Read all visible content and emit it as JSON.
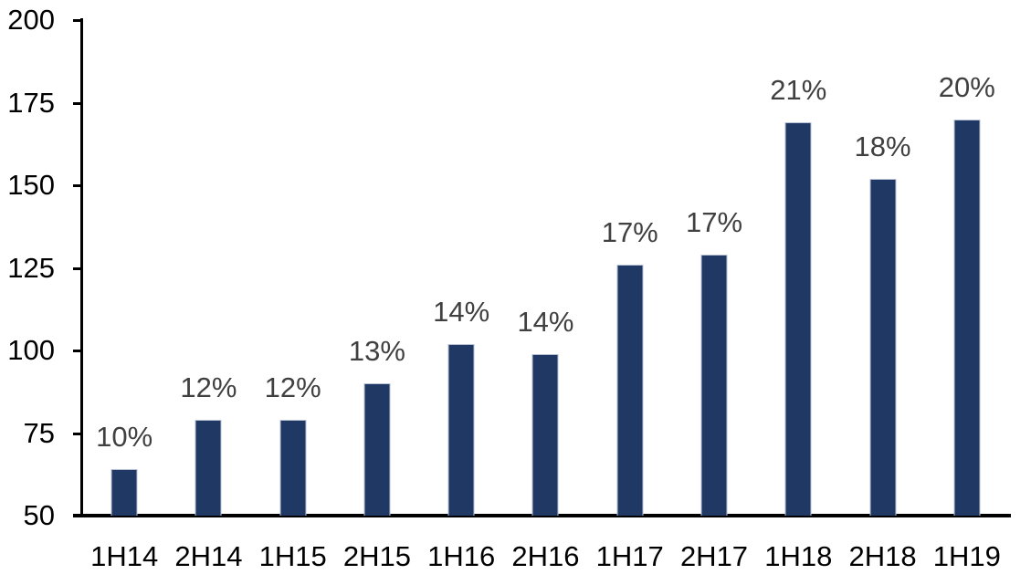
{
  "chart_data": {
    "type": "bar",
    "categories": [
      "1H14",
      "2H14",
      "1H15",
      "2H15",
      "1H16",
      "2H16",
      "1H17",
      "2H17",
      "1H18",
      "2H18",
      "1H19"
    ],
    "values": [
      64,
      79,
      79,
      90,
      102,
      99,
      126,
      129,
      169,
      152,
      170
    ],
    "bar_labels": [
      "10%",
      "12%",
      "12%",
      "13%",
      "14%",
      "14%",
      "17%",
      "17%",
      "21%",
      "18%",
      "20%"
    ],
    "title": "",
    "xlabel": "",
    "ylabel": "",
    "ylim": [
      50,
      200
    ],
    "yticks": [
      50,
      75,
      100,
      125,
      150,
      175,
      200
    ],
    "grid": false,
    "legend_position": "none",
    "colors": {
      "bar_fill": "#1f3864",
      "bar_border": "#b8c2d4",
      "data_label": "#404040",
      "axis_line": "#000000",
      "tick_label": "#000000",
      "background": "#ffffff"
    }
  }
}
